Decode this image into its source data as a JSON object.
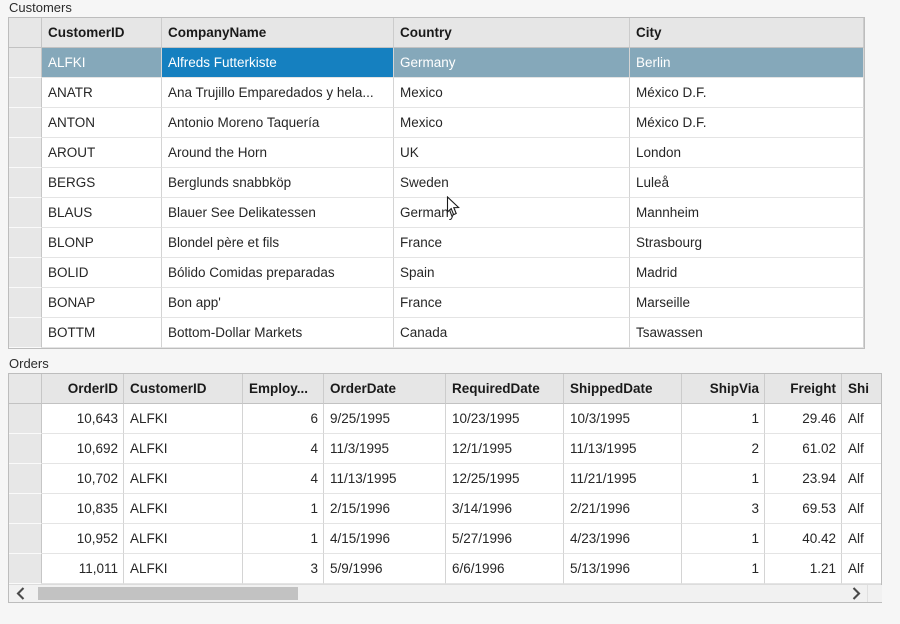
{
  "colors": {
    "selection_inactive": "#85a8ba",
    "selection_focused_cell": "#1580c0",
    "selection_text": "#ffffff"
  },
  "customers": {
    "label": "Customers",
    "columns": [
      "CustomerID",
      "CompanyName",
      "Country",
      "City"
    ],
    "selected_row_index": 0,
    "focused_column_index": 1,
    "rows": [
      [
        "ALFKI",
        "Alfreds Futterkiste",
        "Germany",
        "Berlin"
      ],
      [
        "ANATR",
        "Ana Trujillo Emparedados y hela...",
        "Mexico",
        "México D.F."
      ],
      [
        "ANTON",
        "Antonio Moreno Taquería",
        "Mexico",
        "México D.F."
      ],
      [
        "AROUT",
        "Around the Horn",
        "UK",
        "London"
      ],
      [
        "BERGS",
        "Berglunds snabbköp",
        "Sweden",
        "Luleå"
      ],
      [
        "BLAUS",
        "Blauer See Delikatessen",
        "Germany",
        "Mannheim"
      ],
      [
        "BLONP",
        "Blondel père et fils",
        "France",
        "Strasbourg"
      ],
      [
        "BOLID",
        "Bólido Comidas preparadas",
        "Spain",
        "Madrid"
      ],
      [
        "BONAP",
        "Bon app'",
        "France",
        "Marseille"
      ],
      [
        "BOTTM",
        "Bottom-Dollar Markets",
        "Canada",
        "Tsawassen"
      ]
    ]
  },
  "orders": {
    "label": "Orders",
    "columns": [
      "OrderID",
      "CustomerID",
      "Employ...",
      "OrderDate",
      "RequiredDate",
      "ShippedDate",
      "ShipVia",
      "Freight",
      "Shi"
    ],
    "rows": [
      [
        "10,643",
        "ALFKI",
        "6",
        "9/25/1995",
        "10/23/1995",
        "10/3/1995",
        "1",
        "29.46",
        "Alf"
      ],
      [
        "10,692",
        "ALFKI",
        "4",
        "11/3/1995",
        "12/1/1995",
        "11/13/1995",
        "2",
        "61.02",
        "Alf"
      ],
      [
        "10,702",
        "ALFKI",
        "4",
        "11/13/1995",
        "12/25/1995",
        "11/21/1995",
        "1",
        "23.94",
        "Alf"
      ],
      [
        "10,835",
        "ALFKI",
        "1",
        "2/15/1996",
        "3/14/1996",
        "2/21/1996",
        "3",
        "69.53",
        "Alf"
      ],
      [
        "10,952",
        "ALFKI",
        "1",
        "4/15/1996",
        "5/27/1996",
        "4/23/1996",
        "1",
        "40.42",
        "Alf"
      ],
      [
        "11,011",
        "ALFKI",
        "3",
        "5/9/1996",
        "6/6/1996",
        "5/13/1996",
        "1",
        "1.21",
        "Alf"
      ]
    ]
  },
  "icons": {
    "scroll_left": "chevron-left",
    "scroll_right": "chevron-right",
    "pointer": "arrow-cursor"
  }
}
